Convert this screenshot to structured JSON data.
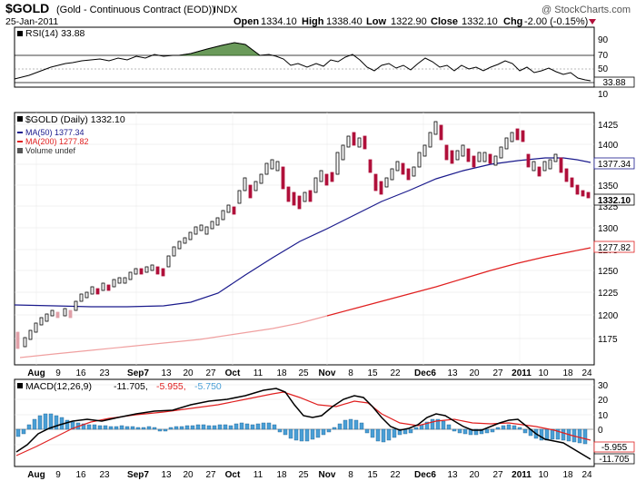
{
  "header": {
    "symbol": "$GOLD",
    "name": "(Gold - Continuous Contract (EOD))",
    "exchange": "INDX",
    "date": "25-Jan-2011",
    "watermark": "@ StockCharts.com",
    "quote_items": [
      {
        "label": "Open",
        "value": "1334.10"
      },
      {
        "label": "High",
        "value": "1338.40"
      },
      {
        "label": "Low",
        "value": "1322.90"
      },
      {
        "label": "Close",
        "value": "1332.10"
      },
      {
        "label": "Chg",
        "value": "-2.00 (-0.15%)"
      }
    ],
    "down_arrow_icon": "down-triangle-icon",
    "down_color": "#b0103a"
  },
  "rsi_panel": {
    "title": "RSI(14) 33.88",
    "last_value_label": "33.88"
  },
  "price_panel": {
    "title": "$GOLD (Daily) 1332.10",
    "legend": [
      {
        "text": "MA(50) 1377.34",
        "color": "#1a1a8c"
      },
      {
        "text": "MA(200) 1277.82",
        "color": "#e02020"
      },
      {
        "text": "Volume undef",
        "color": "#555555"
      }
    ],
    "last_labels": [
      "1377.34",
      "1332.10",
      "1277.82"
    ]
  },
  "macd_panel": {
    "title_parts": [
      {
        "text": "MACD(12,26,9)",
        "color": "#000000"
      },
      {
        "text": "-11.705,",
        "color": "#000000"
      },
      {
        "text": "-5.955,",
        "color": "#e02020"
      },
      {
        "text": "-5.750",
        "color": "#4a9fd6"
      }
    ],
    "last_labels": [
      "-5.955",
      "-11.705"
    ]
  },
  "x_axis_labels": [
    "Aug",
    "9",
    "16",
    "23",
    "Sep7",
    "13",
    "20",
    "27",
    "Oct",
    "11",
    "18",
    "25",
    "Nov",
    "8",
    "15",
    "22",
    "Dec6",
    "13",
    "20",
    "27",
    "2011",
    "10",
    "18",
    "24"
  ],
  "chart_data": [
    {
      "type": "line",
      "title": "RSI(14) 33.88",
      "ylim": [
        10,
        100
      ],
      "y_ticks": [
        "90",
        "70",
        "50",
        "30",
        "10"
      ],
      "reference_lines": [
        70,
        50,
        30
      ],
      "x": [
        "Aug 1",
        "Aug 9",
        "Aug 16",
        "Aug 23",
        "Sep 7",
        "Sep 13",
        "Sep 20",
        "Sep 27",
        "Oct 4",
        "Oct 11",
        "Oct 18",
        "Oct 25",
        "Nov 1",
        "Nov 8",
        "Nov 15",
        "Nov 22",
        "Dec 6",
        "Dec 13",
        "Dec 20",
        "Dec 27",
        "Jan 3",
        "Jan 10",
        "Jan 18",
        "Jan 24",
        "Jan 25"
      ],
      "series": [
        {
          "values": [
            38,
            52,
            60,
            62,
            65,
            66,
            69,
            70,
            72,
            75,
            63,
            56,
            60,
            68,
            55,
            50,
            58,
            60,
            52,
            58,
            62,
            55,
            50,
            42,
            34
          ]
        }
      ]
    },
    {
      "type": "candlestick",
      "title": "$GOLD (Daily) 1332.10",
      "ylim": [
        1150,
        1450
      ],
      "y_ticks": [
        "1425",
        "1400",
        "1375",
        "1350",
        "1325",
        "1300",
        "1275",
        "1250",
        "1225",
        "1200",
        "1175"
      ],
      "x": [
        "Aug 1",
        "Aug 9",
        "Aug 16",
        "Aug 23",
        "Sep 7",
        "Sep 13",
        "Sep 20",
        "Sep 27",
        "Oct 4",
        "Oct 11",
        "Oct 18",
        "Oct 25",
        "Nov 1",
        "Nov 8",
        "Nov 15",
        "Nov 22",
        "Dec 6",
        "Dec 13",
        "Dec 20",
        "Dec 27",
        "Jan 3",
        "Jan 10",
        "Jan 18",
        "Jan 24",
        "Jan 25"
      ],
      "series": [
        {
          "name": "$GOLD",
          "values": [
            1180,
            1205,
            1215,
            1228,
            1245,
            1245,
            1275,
            1305,
            1345,
            1375,
            1340,
            1330,
            1360,
            1415,
            1360,
            1370,
            1400,
            1405,
            1385,
            1390,
            1410,
            1380,
            1370,
            1338,
            1332.1
          ]
        },
        {
          "name": "MA(50) 1377.34",
          "values": [
            1210,
            1210,
            1210,
            1210,
            1210,
            1212,
            1215,
            1225,
            1245,
            1270,
            1290,
            1305,
            1320,
            1335,
            1345,
            1350,
            1360,
            1365,
            1370,
            1375,
            1380,
            1385,
            1385,
            1380,
            1377.34
          ]
        },
        {
          "name": "MA(200) 1277.82",
          "values": [
            1165,
            1167,
            1169,
            1172,
            1175,
            1180,
            1185,
            1190,
            1198,
            1205,
            1212,
            1218,
            1225,
            1232,
            1238,
            1244,
            1250,
            1255,
            1260,
            1265,
            1270,
            1273,
            1276,
            1277.5,
            1277.82
          ]
        }
      ]
    },
    {
      "type": "line",
      "title": "MACD(12,26,9) -11.705, -5.955, -5.750",
      "ylim": [
        -15,
        30
      ],
      "y_ticks": [
        "30",
        "20",
        "10",
        "0",
        "-10"
      ],
      "x": [
        "Aug 1",
        "Aug 9",
        "Aug 16",
        "Aug 23",
        "Sep 7",
        "Sep 13",
        "Sep 20",
        "Sep 27",
        "Oct 4",
        "Oct 11",
        "Oct 18",
        "Oct 25",
        "Nov 1",
        "Nov 8",
        "Nov 15",
        "Nov 22",
        "Dec 6",
        "Dec 13",
        "Dec 20",
        "Dec 27",
        "Jan 3",
        "Jan 10",
        "Jan 18",
        "Jan 24",
        "Jan 25"
      ],
      "series": [
        {
          "name": "MACD(12,26,9)",
          "values": [
            -10,
            5,
            12,
            15,
            16,
            18,
            20,
            22,
            24,
            28,
            22,
            8,
            14,
            22,
            12,
            10,
            14,
            12,
            8,
            10,
            8,
            2,
            -2,
            -8,
            -11.705
          ]
        },
        {
          "name": "Signal",
          "values": [
            -12,
            -2,
            8,
            12,
            15,
            17,
            19,
            21,
            23,
            26,
            24,
            15,
            13,
            18,
            15,
            12,
            12,
            12,
            10,
            9,
            8,
            4,
            0,
            -4,
            -5.955
          ]
        },
        {
          "name": "Histogram",
          "values": [
            2,
            7,
            4,
            3,
            1,
            1,
            1,
            1,
            1,
            2,
            -2,
            -7,
            1,
            4,
            -3,
            -2,
            2,
            0,
            -2,
            1,
            0,
            -2,
            -2,
            -4,
            -5.75
          ]
        }
      ]
    }
  ]
}
